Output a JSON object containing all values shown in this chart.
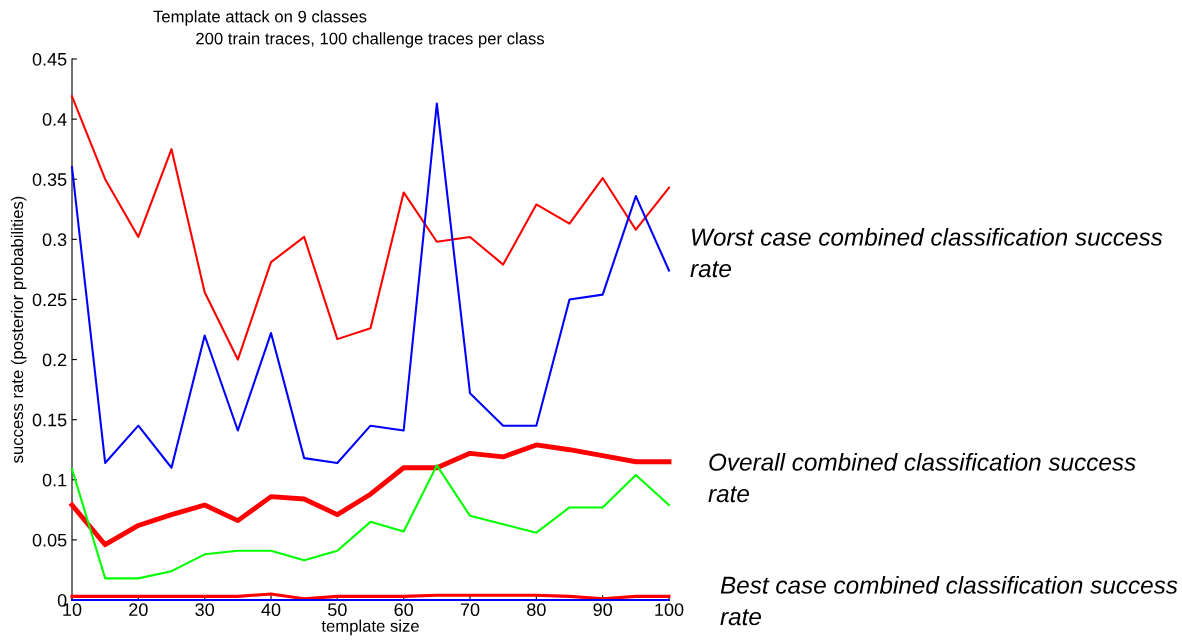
{
  "chart_data": {
    "type": "line",
    "title": "Template attack on 9 classes",
    "subtitle": "200 train traces, 100 challenge traces per class",
    "xlabel": "template size",
    "ylabel": "success rate (posterior probabilities)",
    "x": [
      10,
      15,
      20,
      25,
      30,
      35,
      40,
      45,
      50,
      55,
      60,
      65,
      70,
      75,
      80,
      85,
      90,
      95,
      100
    ],
    "series": [
      {
        "color": "#ff0000",
        "values": [
          0.419,
          0.35,
          0.302,
          0.375,
          0.256,
          0.2,
          0.281,
          0.302,
          0.217,
          0.226,
          0.339,
          0.298,
          0.302,
          0.279,
          0.329,
          0.313,
          0.351,
          0.308,
          0.343
        ]
      },
      {
        "color": "#0000ff",
        "values": [
          0.36,
          0.114,
          0.145,
          0.11,
          0.22,
          0.141,
          0.222,
          0.118,
          0.114,
          0.145,
          0.141,
          0.413,
          0.172,
          0.145,
          0.145,
          0.25,
          0.254,
          0.336,
          0.274
        ]
      },
      {
        "color": "#ff0000",
        "values": [
          0.079,
          0.046,
          0.062,
          0.071,
          0.079,
          0.066,
          0.086,
          0.084,
          0.071,
          0.088,
          0.11,
          0.11,
          0.122,
          0.119,
          0.129,
          0.125,
          0.12,
          0.115,
          0.115
        ]
      },
      {
        "color": "#00ff00",
        "values": [
          0.109,
          0.018,
          0.018,
          0.024,
          0.038,
          0.041,
          0.041,
          0.033,
          0.041,
          0.065,
          0.057,
          0.112,
          0.07,
          0.063,
          0.056,
          0.077,
          0.077,
          0.104,
          0.079
        ]
      },
      {
        "color": "#ff0000",
        "values": [
          0.003,
          0.003,
          0.003,
          0.003,
          0.003,
          0.003,
          0.005,
          0.001,
          0.003,
          0.003,
          0.003,
          0.004,
          0.004,
          0.004,
          0.004,
          0.003,
          0.001,
          0.003,
          0.003
        ]
      },
      {
        "color": "#0000ff",
        "values": [
          0,
          0,
          0,
          0,
          0,
          0,
          0,
          0,
          0,
          0,
          0,
          0,
          0,
          0,
          0,
          0,
          0,
          0,
          0
        ]
      }
    ],
    "xlim": [
      10,
      100
    ],
    "xticks": [
      10,
      20,
      30,
      40,
      50,
      60,
      70,
      80,
      90,
      100
    ],
    "ylim": [
      0,
      0.45
    ],
    "yticks": [
      0,
      0.05,
      0.1,
      0.15,
      0.2,
      0.25,
      0.3,
      0.35,
      0.4,
      0.45
    ],
    "annotations": [
      "Worst case combined classification success rate",
      "Overall combined classification success rate",
      "Best case combined classification success rate"
    ]
  }
}
